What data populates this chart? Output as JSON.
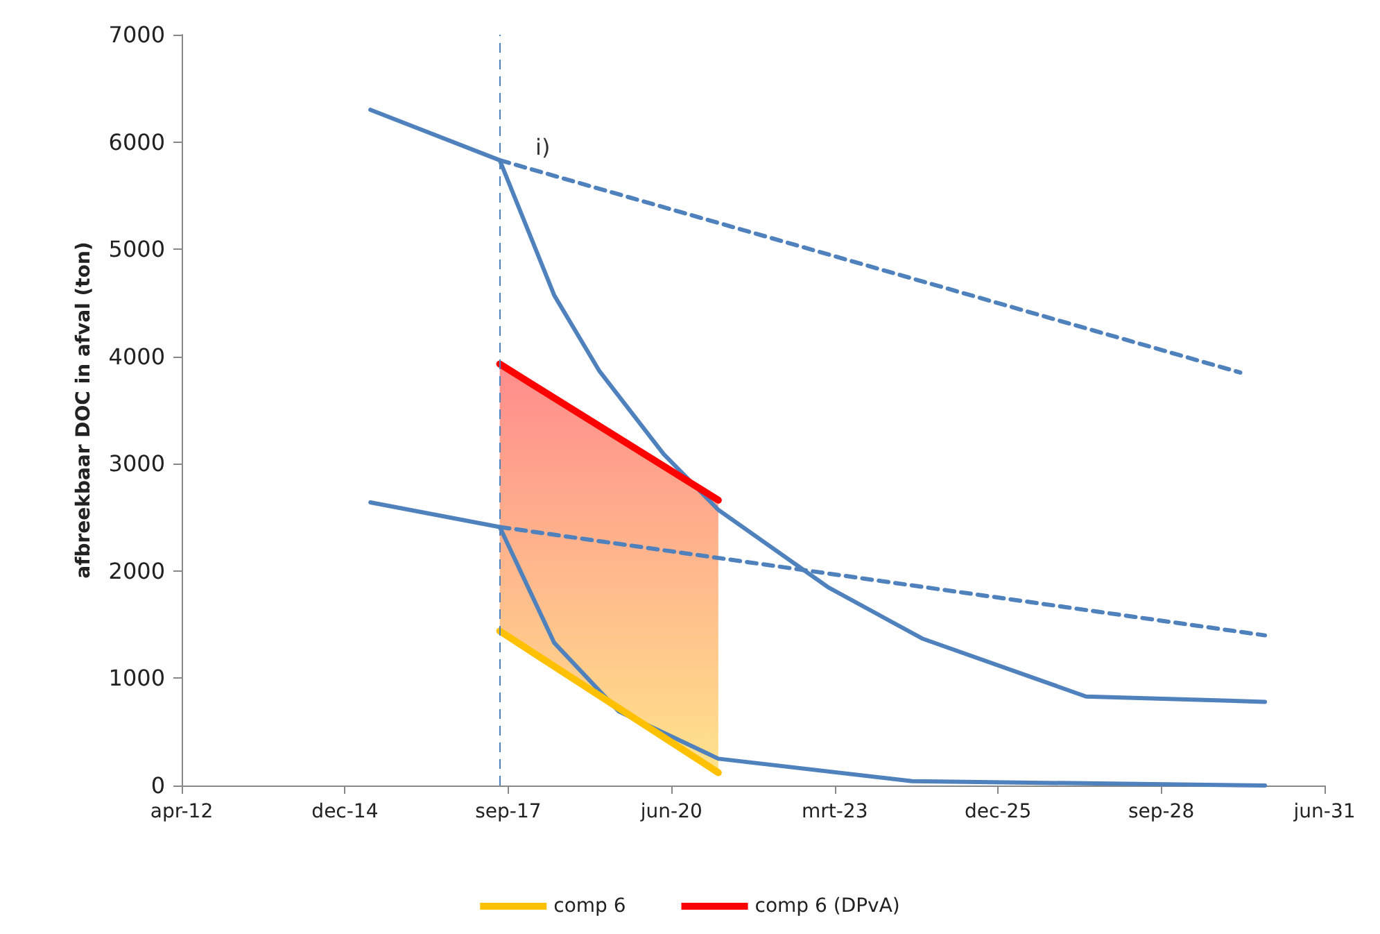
{
  "chart_data": {
    "type": "line",
    "ylabel": "afbreekbaar DOC in afval (ton)",
    "xlim": [
      "2012-04-01",
      "2031-06-01"
    ],
    "xticks": [
      {
        "value": "2012-04-01",
        "label": "apr-12"
      },
      {
        "value": "2014-12-27",
        "label": "dec-14"
      },
      {
        "value": "2017-09-22",
        "label": "sep-17"
      },
      {
        "value": "2020-06-18",
        "label": "jun-20"
      },
      {
        "value": "2023-03-15",
        "label": "mrt-23"
      },
      {
        "value": "2025-12-09",
        "label": "dec-25"
      },
      {
        "value": "2028-09-04",
        "label": "sep-28"
      },
      {
        "value": "2031-06-01",
        "label": "jun-31"
      }
    ],
    "ylim": [
      0,
      7000
    ],
    "yticks": [
      0,
      1000,
      2000,
      3000,
      4000,
      5000,
      6000,
      7000
    ],
    "grid": false,
    "legend": "bottom",
    "marker": "none",
    "series": [
      {
        "color": "#4f81bd",
        "line_style": "solid",
        "x": [
          "2015-06",
          "2017-08",
          "2018-07",
          "2019-04",
          "2020-05",
          "2021-04",
          "2023-02",
          "2024-09",
          "2027-06",
          "2030-06"
        ],
        "values": [
          6300,
          5830,
          4570,
          3870,
          3090,
          2570,
          1850,
          1370,
          830,
          780
        ]
      },
      {
        "color": "#4f81bd",
        "line_style": "dashed",
        "x": [
          "2017-08",
          "2030-01"
        ],
        "values": [
          5830,
          3850
        ]
      },
      {
        "color": "#4f81bd",
        "line_style": "solid",
        "x": [
          "2015-06",
          "2017-08",
          "2018-07",
          "2019-08",
          "2021-04",
          "2024-07",
          "2030-06"
        ],
        "values": [
          2640,
          2410,
          1330,
          690,
          250,
          40,
          0
        ]
      },
      {
        "color": "#4f81bd",
        "line_style": "dashed",
        "x": [
          "2017-08",
          "2030-06"
        ],
        "values": [
          2410,
          1400
        ]
      },
      {
        "name": "comp 6",
        "color": "#ffc000",
        "line_style": "solid",
        "x": [
          "2017-08",
          "2021-04"
        ],
        "values": [
          1440,
          120
        ]
      },
      {
        "name": "comp 6 (DPvA)",
        "color": "#ff0000",
        "line_style": "solid",
        "x": [
          "2017-08",
          "2021-04"
        ],
        "values": [
          3930,
          2660
        ],
        "lower": [
          1440,
          120
        ],
        "upper": [
          3930,
          2660
        ]
      }
    ],
    "ref_lines": [
      {
        "axis": "x",
        "value": "2017-08",
        "color": "#4f81bd",
        "line_style": "dashed"
      }
    ],
    "annotations": [
      "i)"
    ]
  }
}
